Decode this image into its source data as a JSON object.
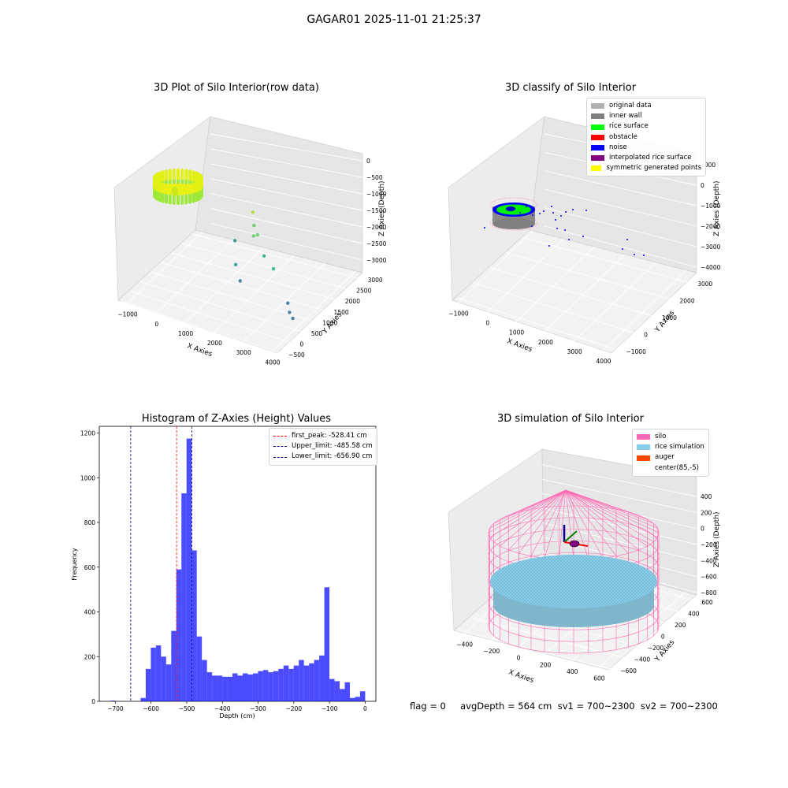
{
  "figure": {
    "suptitle": "GAGAR01 2025-11-01 21:25:37",
    "footer": "flag = 0     avgDepth = 564 cm  sv1 = 700~2300  sv2 = 700~2300"
  },
  "chart_data": [
    {
      "type": "scatter",
      "title": "3D Plot of Silo Interior(row data)",
      "xlabel": "X Axies",
      "ylabel": "Y Axies",
      "zlabel": "Z Axies (Depth)",
      "xticks": [
        "−1000",
        "0",
        "1000",
        "2000",
        "3000",
        "4000"
      ],
      "yticks": [
        "−500",
        "0",
        "500",
        "1000",
        "1500",
        "2000",
        "2500",
        "3000"
      ],
      "zticks": [
        "0",
        "−500",
        "−1000",
        "−1500",
        "−2000",
        "−2500",
        "−3000"
      ],
      "colormap": "viridis",
      "dense_cluster": {
        "center": [
          -300,
          2200
        ],
        "radius": 350,
        "z_range": [
          -650,
          -480
        ],
        "colors": [
          "#9ee83a",
          "#e1f015"
        ]
      },
      "scattered_points": [
        {
          "x": 800,
          "y": 2500,
          "z": -1000
        },
        {
          "x": 1000,
          "y": 2300,
          "z": -1300
        },
        {
          "x": 1300,
          "y": 1900,
          "z": -1400
        },
        {
          "x": 1600,
          "y": 1700,
          "z": -1200
        },
        {
          "x": 2000,
          "y": 1500,
          "z": -1700
        },
        {
          "x": 2500,
          "y": 1300,
          "z": -1900
        },
        {
          "x": 3500,
          "y": 700,
          "z": -2500
        },
        {
          "x": 3800,
          "y": 400,
          "z": -2600
        },
        {
          "x": 4000,
          "y": 300,
          "z": -2700
        },
        {
          "x": 1200,
          "y": 1200,
          "z": -2100
        },
        {
          "x": 300,
          "y": 2300,
          "z": -2000
        },
        {
          "x": 1600,
          "y": 900,
          "z": -2400
        }
      ]
    },
    {
      "type": "scatter",
      "title": "3D classify of Silo Interior",
      "xlabel": "X Axies",
      "ylabel": "Y Axies",
      "zlabel": "Z Axies (Depth)",
      "xticks": [
        "−1000",
        "0",
        "1000",
        "2000",
        "3000",
        "4000"
      ],
      "yticks": [
        "−1000",
        "0",
        "1000",
        "2000",
        "3000"
      ],
      "zticks": [
        "1000",
        "0",
        "−1000",
        "−2000",
        "−3000",
        "−4000"
      ],
      "legend": {
        "position": "upper-right",
        "entries": [
          {
            "label": "original data",
            "color": "#b0b0b0"
          },
          {
            "label": "inner wall",
            "color": "#808080"
          },
          {
            "label": "rice surface",
            "color": "#00ff00"
          },
          {
            "label": "obstacle",
            "color": "#ff0000"
          },
          {
            "label": "noise",
            "color": "#0000ff"
          },
          {
            "label": "interpolated rice surface",
            "color": "#800080"
          },
          {
            "label": "symmetric generated points",
            "color": "#ffff00"
          }
        ]
      }
    },
    {
      "type": "bar",
      "title": "Histogram of Z-Axies (Height) Values",
      "xlabel": "Depth (cm)",
      "ylabel": "Frequency",
      "xlim": [
        -745,
        30
      ],
      "ylim": [
        0,
        1230
      ],
      "xticks": [
        -700,
        -600,
        -500,
        -400,
        -300,
        -200,
        -100,
        0
      ],
      "yticks": [
        0,
        200,
        400,
        600,
        800,
        1000,
        1200
      ],
      "bin_start": -715,
      "bin_width": 14.3,
      "values": [
        3,
        0,
        0,
        0,
        0,
        0,
        15,
        145,
        240,
        250,
        200,
        165,
        315,
        590,
        930,
        1175,
        675,
        290,
        185,
        130,
        115,
        115,
        110,
        110,
        125,
        115,
        125,
        120,
        125,
        135,
        140,
        130,
        135,
        145,
        160,
        145,
        160,
        185,
        160,
        170,
        185,
        205,
        510,
        100,
        90,
        55,
        85,
        15,
        20,
        45
      ],
      "bar_color": "#0000ff",
      "reference_lines": [
        {
          "label": "first_peak: -528.41 cm",
          "value": -528.41,
          "color": "#ff0000"
        },
        {
          "label": "Upper_limit: -485.58 cm",
          "value": -485.58,
          "color": "#00008b"
        },
        {
          "label": "Lower_limit: -656.90 cm",
          "value": -656.9,
          "color": "#00008b"
        }
      ],
      "legend": {
        "position": "upper-right"
      }
    },
    {
      "type": "scatter",
      "title": "3D simulation of Silo Interior",
      "xlabel": "X Axies",
      "ylabel": "Y Axies",
      "zlabel": "Z Axies (Depth)",
      "xticks": [
        "−400",
        "−200",
        "0",
        "200",
        "400",
        "600"
      ],
      "yticks": [
        "−600",
        "−400",
        "−200",
        "0",
        "200",
        "400",
        "600"
      ],
      "zticks": [
        "400",
        "200",
        "0",
        "−200",
        "−400",
        "−600",
        "−800"
      ],
      "legend": {
        "position": "upper-right",
        "entries": [
          {
            "label": "silo",
            "color": "#ff69b4"
          },
          {
            "label": "rice simulation",
            "color": "#87ceeb"
          },
          {
            "label": "auger",
            "color": "#ff4500"
          },
          {
            "label": "center(85,-5)",
            "color": "#ffffff"
          }
        ]
      }
    }
  ]
}
